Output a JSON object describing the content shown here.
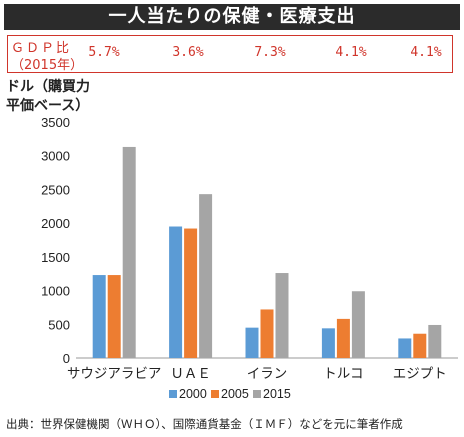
{
  "title": "一人当たりの保健・医療支出",
  "gdp_box": {
    "label_line1": "ＧＤＰ比",
    "label_line2": "（2015年）",
    "values": [
      "5.7%",
      "3.6%",
      "7.3%",
      "4.1%",
      "4.1%"
    ]
  },
  "unit_label_line1": "ドル（購買力",
  "unit_label_line2": "平価ベース）",
  "source": "出典：世界保健機関（ＷＨＯ）、国際通貨基金（ＩＭＦ）などを元に筆者作成",
  "colors": {
    "2000": "#5b9bd5",
    "2005": "#ed7d31",
    "2015": "#a5a5a5"
  },
  "chart_data": {
    "type": "bar",
    "title": "一人当たりの保健・医療支出",
    "ylabel": "ドル（購買力平価ベース）",
    "xlabel": "",
    "categories": [
      "サウジアラビア",
      "ＵＡＥ",
      "イラン",
      "トルコ",
      "エジプト"
    ],
    "ylim": [
      0,
      3500
    ],
    "yticks": [
      0,
      500,
      1000,
      1500,
      2000,
      2500,
      3000,
      3500
    ],
    "grid": false,
    "legend": "bottom",
    "series": [
      {
        "name": "2000",
        "values": [
          1230,
          1950,
          450,
          440,
          290
        ]
      },
      {
        "name": "2005",
        "values": [
          1230,
          1920,
          720,
          580,
          360
        ]
      },
      {
        "name": "2015",
        "values": [
          3130,
          2430,
          1260,
          990,
          490
        ]
      }
    ]
  }
}
